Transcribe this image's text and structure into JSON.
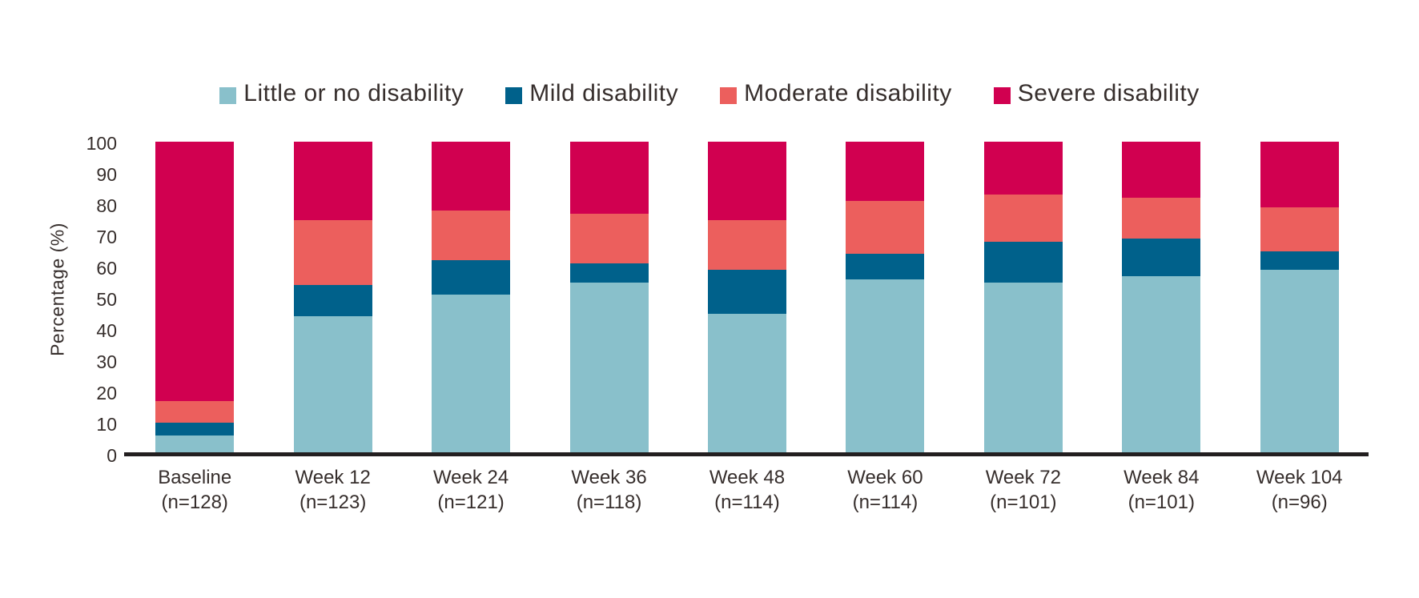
{
  "colors": {
    "little_or_no": "#89C0CB",
    "mild": "#00618B",
    "moderate": "#EC5F5D",
    "severe": "#D10050",
    "axis": "#231F20",
    "text": "#362E2C"
  },
  "chart_data": {
    "type": "bar",
    "stacked": true,
    "orientation": "vertical",
    "title": "",
    "xlabel": "",
    "ylabel": "Percentage (%)",
    "ylim": [
      0,
      100
    ],
    "yticks": [
      0,
      10,
      20,
      30,
      40,
      50,
      60,
      70,
      80,
      90,
      100
    ],
    "grid": false,
    "legend_position": "top",
    "categories": [
      "Baseline",
      "Week 12",
      "Week 24",
      "Week 36",
      "Week 48",
      "Week 60",
      "Week 72",
      "Week 84",
      "Week 104"
    ],
    "counts": [
      "(n=128)",
      "(n=123)",
      "(n=121)",
      "(n=118)",
      "(n=114)",
      "(n=114)",
      "(n=101)",
      "(n=101)",
      "(n=96)"
    ],
    "series": [
      {
        "name": "Little or no disability",
        "color": "#89C0CB",
        "values": [
          6,
          44,
          51,
          55,
          45,
          56,
          55,
          57,
          59
        ]
      },
      {
        "name": "Mild disability",
        "color": "#00618B",
        "values": [
          4,
          10,
          11,
          6,
          14,
          8,
          13,
          12,
          6
        ]
      },
      {
        "name": "Moderate disability",
        "color": "#EC5F5D",
        "values": [
          7,
          21,
          16,
          16,
          16,
          17,
          15,
          13,
          14
        ]
      },
      {
        "name": "Severe disability",
        "color": "#D10050",
        "values": [
          83,
          25,
          22,
          23,
          25,
          19,
          17,
          18,
          21
        ]
      }
    ]
  }
}
